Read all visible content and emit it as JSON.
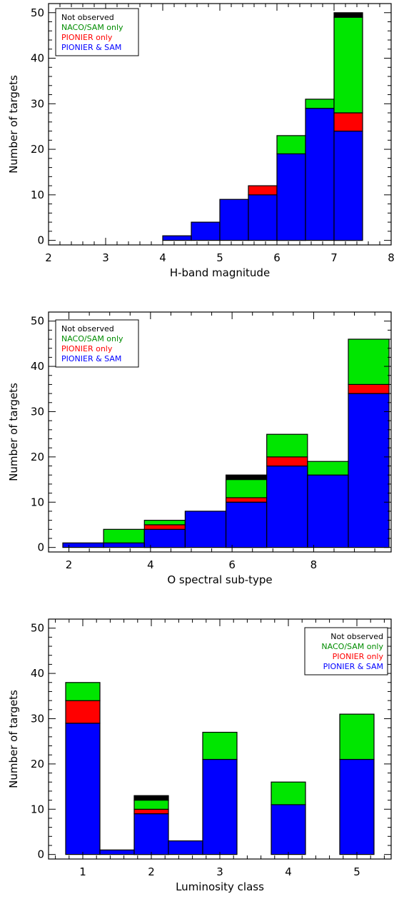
{
  "colors": {
    "not_observed": "#000000",
    "naco_sam_only": "#00e600",
    "pionier_only": "#ff0000",
    "pionier_sam": "#0000ff",
    "naco_sam_only_text": "#008c00"
  },
  "chart_data": [
    {
      "type": "bar",
      "stacked": true,
      "xlabel": "H-band magnitude",
      "ylabel": "Number of targets",
      "xlim": [
        2,
        8
      ],
      "ylim": [
        -1,
        52
      ],
      "xticks": [
        "2",
        "3",
        "4",
        "5",
        "6",
        "7",
        "8"
      ],
      "yticks": [
        "0",
        "10",
        "20",
        "30",
        "40",
        "50"
      ],
      "legend_position": "top-left",
      "bins": [
        {
          "x0": 4.0,
          "x1": 4.5
        },
        {
          "x0": 4.5,
          "x1": 5.0
        },
        {
          "x0": 5.0,
          "x1": 5.5
        },
        {
          "x0": 5.5,
          "x1": 6.0
        },
        {
          "x0": 6.0,
          "x1": 6.5
        },
        {
          "x0": 6.5,
          "x1": 7.0
        },
        {
          "x0": 7.0,
          "x1": 7.5
        }
      ],
      "series": [
        {
          "name": "PIONIER & SAM",
          "values": [
            1,
            4,
            9,
            10,
            19,
            29,
            24
          ]
        },
        {
          "name": "PIONIER only",
          "values": [
            0,
            0,
            0,
            2,
            0,
            0,
            4
          ]
        },
        {
          "name": "NACO/SAM only",
          "values": [
            0,
            0,
            0,
            0,
            4,
            2,
            21
          ]
        },
        {
          "name": "Not observed",
          "values": [
            0,
            0,
            0,
            0,
            0,
            0,
            1
          ]
        }
      ]
    },
    {
      "type": "bar",
      "stacked": true,
      "xlabel": "O spectral sub-type",
      "ylabel": "Number of targets",
      "xlim": [
        1.5,
        9.9
      ],
      "ylim": [
        -1,
        52
      ],
      "xticks": [
        "2",
        "4",
        "6",
        "8"
      ],
      "yticks": [
        "0",
        "10",
        "20",
        "30",
        "40",
        "50"
      ],
      "legend_position": "top-left",
      "bins": [
        {
          "x0": 1.85,
          "x1": 2.85
        },
        {
          "x0": 2.85,
          "x1": 3.85
        },
        {
          "x0": 3.85,
          "x1": 4.85
        },
        {
          "x0": 4.85,
          "x1": 5.85
        },
        {
          "x0": 5.85,
          "x1": 6.85
        },
        {
          "x0": 6.85,
          "x1": 7.85
        },
        {
          "x0": 7.85,
          "x1": 8.85
        },
        {
          "x0": 8.85,
          "x1": 9.85
        }
      ],
      "series": [
        {
          "name": "PIONIER & SAM",
          "values": [
            1,
            1,
            4,
            8,
            10,
            18,
            16,
            34
          ]
        },
        {
          "name": "PIONIER only",
          "values": [
            0,
            0,
            1,
            0,
            1,
            2,
            0,
            2
          ]
        },
        {
          "name": "NACO/SAM only",
          "values": [
            0,
            3,
            1,
            0,
            4,
            5,
            3,
            10
          ]
        },
        {
          "name": "Not observed",
          "values": [
            0,
            0,
            0,
            0,
            1,
            0,
            0,
            0
          ]
        }
      ]
    },
    {
      "type": "bar",
      "stacked": true,
      "xlabel": "Luminosity class",
      "ylabel": "Number of targets",
      "xlim": [
        0.5,
        5.5
      ],
      "ylim": [
        -1,
        52
      ],
      "xticks": [
        "1",
        "2",
        "3",
        "4",
        "5"
      ],
      "yticks": [
        "0",
        "10",
        "20",
        "30",
        "40",
        "50"
      ],
      "legend_position": "top-right",
      "bins": [
        {
          "x0": 0.75,
          "x1": 1.25
        },
        {
          "x0": 1.25,
          "x1": 1.75
        },
        {
          "x0": 1.75,
          "x1": 2.25
        },
        {
          "x0": 2.25,
          "x1": 2.75
        },
        {
          "x0": 2.75,
          "x1": 3.25
        },
        {
          "x0": 3.75,
          "x1": 4.25
        },
        {
          "x0": 4.75,
          "x1": 5.25
        }
      ],
      "series": [
        {
          "name": "PIONIER & SAM",
          "values": [
            29,
            1,
            9,
            3,
            21,
            11,
            21
          ]
        },
        {
          "name": "PIONIER only",
          "values": [
            5,
            0,
            1,
            0,
            0,
            0,
            0
          ]
        },
        {
          "name": "NACO/SAM only",
          "values": [
            4,
            0,
            2,
            0,
            6,
            5,
            10
          ]
        },
        {
          "name": "Not observed",
          "values": [
            0,
            0,
            1,
            0,
            0,
            0,
            0
          ]
        }
      ]
    }
  ]
}
